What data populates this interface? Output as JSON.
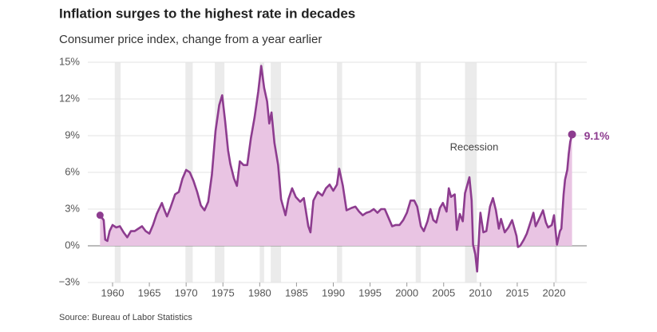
{
  "title": "Inflation surges to the highest rate in decades",
  "subtitle": "Consumer price index, change from a year earlier",
  "source": "Source: Bureau of Labor Statistics",
  "chart_data": {
    "type": "line",
    "color": "#8d3c8f",
    "area_color": "#e9c4e3",
    "annotation": "Recession",
    "end_label": "9.1%",
    "recessions": [
      {
        "start": 1960.3,
        "end": 1961.1
      },
      {
        "start": 1969.9,
        "end": 1970.9
      },
      {
        "start": 1973.9,
        "end": 1975.2
      },
      {
        "start": 1980.0,
        "end": 1980.6
      },
      {
        "start": 1981.5,
        "end": 1982.9
      },
      {
        "start": 1990.5,
        "end": 1991.2
      },
      {
        "start": 2001.2,
        "end": 2001.9
      },
      {
        "start": 2007.9,
        "end": 2009.5
      },
      {
        "start": 2020.1,
        "end": 2020.4
      }
    ],
    "x": [
      1958.3,
      1958.8,
      1959.0,
      1959.3,
      1959.6,
      1960.0,
      1960.5,
      1961.0,
      1961.5,
      1962.0,
      1962.5,
      1963.0,
      1963.5,
      1964.0,
      1964.5,
      1965.0,
      1965.5,
      1966.0,
      1966.7,
      1967.0,
      1967.4,
      1967.8,
      1968.5,
      1969.0,
      1969.5,
      1970.0,
      1970.5,
      1971.0,
      1971.5,
      1972.0,
      1972.5,
      1973.0,
      1973.5,
      1974.0,
      1974.5,
      1974.9,
      1975.3,
      1975.7,
      1976.0,
      1976.5,
      1976.9,
      1977.3,
      1977.8,
      1978.3,
      1978.8,
      1979.3,
      1979.8,
      1980.2,
      1980.6,
      1981.0,
      1981.3,
      1981.6,
      1982.0,
      1982.5,
      1982.9,
      1983.5,
      1983.9,
      1984.4,
      1984.9,
      1985.5,
      1986.0,
      1986.6,
      1986.9,
      1987.3,
      1987.9,
      1988.5,
      1989.0,
      1989.5,
      1990.0,
      1990.5,
      1990.8,
      1991.3,
      1991.8,
      1992.5,
      1993.0,
      1993.5,
      1994.0,
      1994.5,
      1995.0,
      1995.5,
      1996.0,
      1996.5,
      1997.0,
      1997.5,
      1998.0,
      1998.5,
      1999.0,
      1999.5,
      2000.0,
      2000.5,
      2001.0,
      2001.4,
      2001.9,
      2002.3,
      2002.8,
      2003.2,
      2003.6,
      2004.0,
      2004.5,
      2004.9,
      2005.4,
      2005.7,
      2006.0,
      2006.5,
      2006.8,
      2007.2,
      2007.6,
      2007.9,
      2008.5,
      2008.8,
      2009.0,
      2009.3,
      2009.55,
      2009.9,
      2010.0,
      2010.4,
      2010.8,
      2011.3,
      2011.7,
      2012.1,
      2012.5,
      2012.8,
      2013.3,
      2013.8,
      2014.3,
      2014.9,
      2015.1,
      2015.4,
      2015.9,
      2016.3,
      2016.9,
      2017.2,
      2017.5,
      2017.9,
      2018.5,
      2018.9,
      2019.2,
      2019.7,
      2020.0,
      2020.4,
      2020.8,
      2021.0,
      2021.3,
      2021.5,
      2021.8,
      2022.0,
      2022.2,
      2022.45
    ],
    "values": [
      2.5,
      2.1,
      0.5,
      0.4,
      1.2,
      1.7,
      1.5,
      1.6,
      1.1,
      0.7,
      1.2,
      1.2,
      1.4,
      1.6,
      1.2,
      1.0,
      1.7,
      2.6,
      3.5,
      3.0,
      2.4,
      3.0,
      4.2,
      4.4,
      5.5,
      6.2,
      6.0,
      5.3,
      4.4,
      3.3,
      2.9,
      3.6,
      5.8,
      9.4,
      11.5,
      12.3,
      10.2,
      7.8,
      6.7,
      5.5,
      4.9,
      6.9,
      6.6,
      6.6,
      8.8,
      10.5,
      12.6,
      14.7,
      12.9,
      11.8,
      10.0,
      10.9,
      8.4,
      6.6,
      3.8,
      2.5,
      3.8,
      4.7,
      4.0,
      3.6,
      3.9,
      1.6,
      1.1,
      3.7,
      4.4,
      4.1,
      4.7,
      5.0,
      4.5,
      5.0,
      6.3,
      4.9,
      2.9,
      3.1,
      3.2,
      2.8,
      2.5,
      2.7,
      2.8,
      3.0,
      2.7,
      3.0,
      3.0,
      2.3,
      1.6,
      1.7,
      1.7,
      2.1,
      2.7,
      3.7,
      3.7,
      3.2,
      1.6,
      1.2,
      2.0,
      3.0,
      2.1,
      1.9,
      3.1,
      3.5,
      2.8,
      4.7,
      4.0,
      4.2,
      1.3,
      2.6,
      2.0,
      4.3,
      5.6,
      3.7,
      0.1,
      -0.7,
      -2.1,
      1.8,
      2.7,
      1.1,
      1.2,
      3.2,
      3.9,
      2.9,
      1.4,
      2.2,
      1.1,
      1.5,
      2.1,
      0.8,
      -0.1,
      0.0,
      0.5,
      1.0,
      2.1,
      2.7,
      1.6,
      2.1,
      2.9,
      1.9,
      1.5,
      1.7,
      2.5,
      0.1,
      1.2,
      1.4,
      4.2,
      5.4,
      6.2,
      7.5,
      8.5,
      9.1
    ],
    "xlim": [
      1957,
      2026
    ],
    "xticks": [
      1960,
      1965,
      1970,
      1975,
      1980,
      1985,
      1990,
      1995,
      2000,
      2005,
      2010,
      2015,
      2020
    ],
    "ylim": [
      -3,
      15
    ],
    "yticks": [
      {
        "value": -3,
        "label": "−3%"
      },
      {
        "value": 0,
        "label": "0%"
      },
      {
        "value": 3,
        "label": "3%"
      },
      {
        "value": 6,
        "label": "6%"
      },
      {
        "value": 9,
        "label": "9%"
      },
      {
        "value": 12,
        "label": "12%"
      },
      {
        "value": 15,
        "label": "15%"
      }
    ],
    "grid": true
  }
}
